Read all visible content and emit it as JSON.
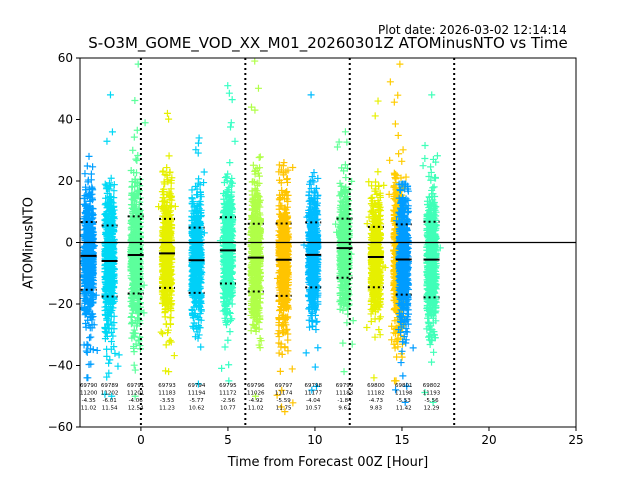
{
  "plot_date": "Plot date: 2026-03-02 12:14:14",
  "chart_data": {
    "type": "scatter",
    "title": "S-O3M_GOME_VOD_XX_M01_20260301Z ATOMinusNTO vs Time",
    "xlabel": "Time from Forecast 00Z [Hour]",
    "ylabel": "ATOMinusNTO",
    "xlim": [
      -3.5,
      25
    ],
    "ylim": [
      -60,
      60
    ],
    "xticks": [
      0,
      5,
      10,
      15,
      20,
      25
    ],
    "yticks": [
      -60,
      -40,
      -20,
      0,
      20,
      40,
      60
    ],
    "vlines": [
      0,
      6,
      12,
      18
    ],
    "hline": 0,
    "columns": [
      {
        "x": -3.0,
        "color": "#009fff",
        "mean": -4.35,
        "std": 11.02,
        "min": -44,
        "max": 28,
        "stats": [
          "69790",
          "11200",
          "-4.35",
          "11.02"
        ]
      },
      {
        "x": -1.8,
        "color": "#00d8f5",
        "mean": -6.01,
        "std": 11.54,
        "min": -50,
        "max": 48,
        "stats": [
          "69789",
          "11202",
          "-6.01",
          "11.54"
        ]
      },
      {
        "x": -0.3,
        "color": "#5cff9c",
        "mean": -4.06,
        "std": 12.54,
        "min": -50,
        "max": 58,
        "stats": [
          "69791",
          "11201",
          "-4.06",
          "12.54"
        ]
      },
      {
        "x": 1.5,
        "color": "#e6f000",
        "mean": -3.53,
        "std": 11.23,
        "min": -42,
        "max": 42,
        "stats": [
          "69793",
          "11183",
          "-3.53",
          "11.23"
        ]
      },
      {
        "x": 3.2,
        "color": "#00d0f8",
        "mean": -5.77,
        "std": 10.62,
        "min": -46,
        "max": 34,
        "stats": [
          "69794",
          "11194",
          "-5.77",
          "10.62"
        ]
      },
      {
        "x": 5.0,
        "color": "#36ffc4",
        "mean": -2.56,
        "std": 10.77,
        "min": -45,
        "max": 51,
        "stats": [
          "69795",
          "11172",
          "-2.56",
          "10.77"
        ]
      },
      {
        "x": 6.6,
        "color": "#b0ff48",
        "mean": -4.92,
        "std": 11.02,
        "min": -50,
        "max": 59,
        "stats": [
          "69796",
          "11026",
          "-4.92",
          "11.02"
        ]
      },
      {
        "x": 8.2,
        "color": "#ffc400",
        "mean": -5.59,
        "std": 11.75,
        "min": -55,
        "max": 26,
        "stats": [
          "69797",
          "11174",
          "-5.59",
          "11.75"
        ]
      },
      {
        "x": 9.9,
        "color": "#00bcff",
        "mean": -4.04,
        "std": 10.57,
        "min": -48,
        "max": 48,
        "stats": [
          "69798",
          "11177",
          "-4.04",
          "10.57"
        ]
      },
      {
        "x": 11.7,
        "color": "#62ff96",
        "mean": -1.84,
        "std": 9.62,
        "min": -42,
        "max": 36,
        "stats": [
          "69799",
          "11183",
          "-1.84",
          "9.62"
        ]
      },
      {
        "x": 13.5,
        "color": "#e6f000",
        "mean": -4.73,
        "std": 9.83,
        "min": -44,
        "max": 46,
        "stats": [
          "69800",
          "11182",
          "-4.73",
          "9.83"
        ]
      },
      {
        "x": 15.1,
        "color": "#009cff",
        "mean": -5.53,
        "std": 11.42,
        "min": -52,
        "max": 19,
        "stats": [
          "69801",
          "11198",
          "-5.53",
          "11.42"
        ]
      },
      {
        "x": 16.7,
        "color": "#40ffb8",
        "mean": -5.56,
        "std": 12.29,
        "min": -52,
        "max": 48,
        "stats": [
          "69802",
          "11193",
          "-5.56",
          "12.29"
        ]
      }
    ],
    "extra_columns": [
      {
        "x": 14.8,
        "color": "#ffcc00",
        "min": -45,
        "max": 58
      }
    ]
  }
}
